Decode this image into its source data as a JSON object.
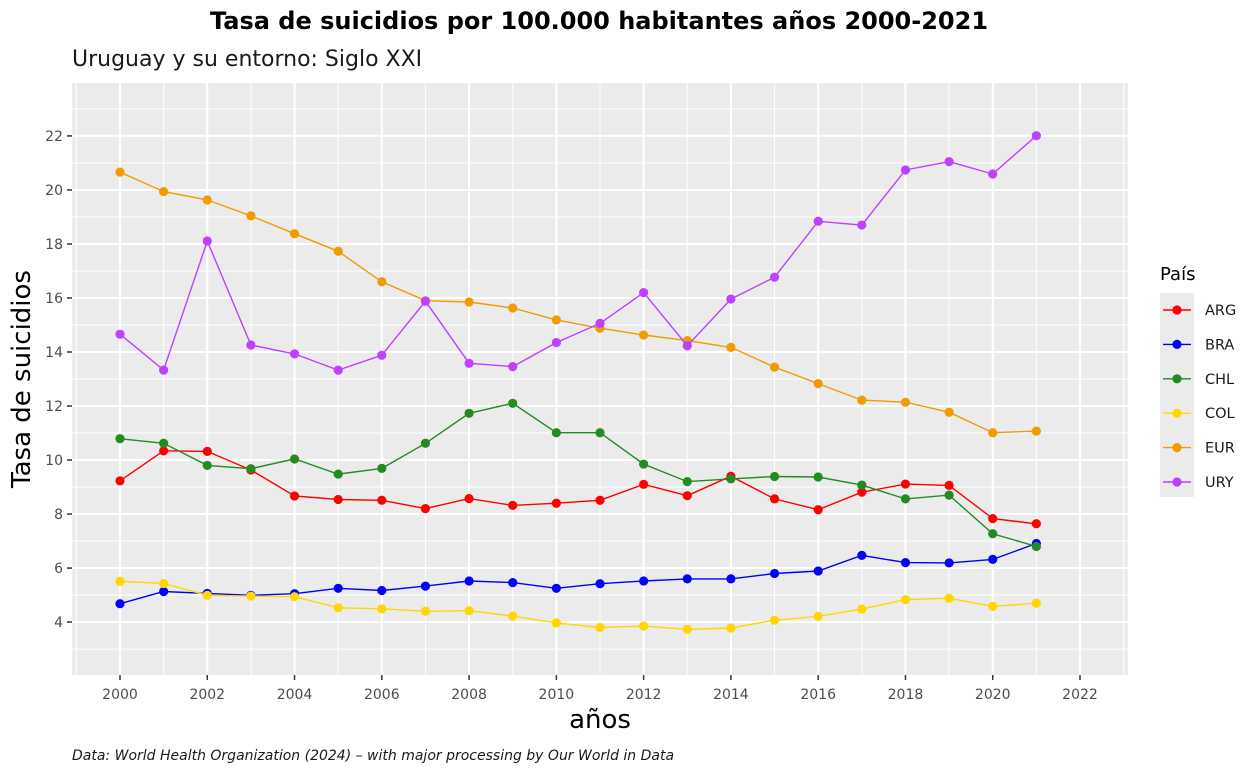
{
  "chart_data": {
    "type": "line",
    "title": "Tasa de suicidios por 100.000 habitantes años 2000-2021",
    "subtitle": "Uruguay y su entorno: Siglo XXI",
    "xlabel": "años",
    "ylabel": "Tasa de suicidios",
    "caption": "Data: World Health Organization (2024) – with major processing by Our World in Data",
    "xlim": [
      1998.9,
      2023.1
    ],
    "ylim": [
      2.04,
      23.96
    ],
    "x_ticks": [
      2000,
      2002,
      2004,
      2006,
      2008,
      2010,
      2012,
      2014,
      2016,
      2018,
      2020,
      2022
    ],
    "x_tick_labels": [
      "2000",
      "2002",
      "2004",
      "2006",
      "2008",
      "2010",
      "2012",
      "2014",
      "2016",
      "2018",
      "2020",
      "2022"
    ],
    "x_minor": [
      1999,
      2001,
      2003,
      2005,
      2007,
      2009,
      2011,
      2013,
      2015,
      2017,
      2019,
      2021,
      2023
    ],
    "y_ticks": [
      4,
      6,
      8,
      10,
      12,
      14,
      16,
      18,
      20,
      22
    ],
    "y_tick_labels": [
      "4",
      "6",
      "8",
      "10",
      "12",
      "14",
      "16",
      "18",
      "20",
      "22"
    ],
    "y_minor": [
      3,
      5,
      7,
      9,
      11,
      13,
      15,
      17,
      19,
      21,
      23
    ],
    "grid": true,
    "legend": {
      "title": "País",
      "position": "right"
    },
    "x": [
      2000,
      2001,
      2002,
      2003,
      2004,
      2005,
      2006,
      2007,
      2008,
      2009,
      2010,
      2011,
      2012,
      2013,
      2014,
      2015,
      2016,
      2017,
      2018,
      2019,
      2020,
      2021
    ],
    "series": [
      {
        "name": "ARG",
        "color": "#ff0000",
        "values": [
          9.23,
          10.34,
          10.32,
          9.63,
          8.67,
          8.54,
          8.51,
          8.2,
          8.57,
          8.32,
          8.4,
          8.51,
          9.1,
          8.68,
          9.4,
          8.56,
          8.16,
          8.81,
          9.11,
          9.06,
          7.83,
          7.64
        ]
      },
      {
        "name": "BRA",
        "color": "#0000ff",
        "values": [
          4.68,
          5.13,
          5.06,
          4.99,
          5.05,
          5.25,
          5.17,
          5.33,
          5.52,
          5.46,
          5.25,
          5.42,
          5.52,
          5.6,
          5.6,
          5.8,
          5.89,
          6.47,
          6.2,
          6.19,
          6.32,
          6.91
        ]
      },
      {
        "name": "CHL",
        "color": "#228b22",
        "values": [
          10.79,
          10.62,
          9.8,
          9.68,
          10.04,
          9.48,
          9.69,
          10.62,
          11.73,
          12.1,
          11.01,
          11.01,
          9.85,
          9.2,
          9.3,
          9.39,
          9.37,
          9.07,
          8.56,
          8.7,
          7.27,
          6.8
        ]
      },
      {
        "name": "COL",
        "color": "#ffd700",
        "values": [
          5.51,
          5.43,
          4.99,
          4.96,
          4.94,
          4.53,
          4.49,
          4.4,
          4.42,
          4.22,
          3.97,
          3.8,
          3.85,
          3.73,
          3.78,
          4.07,
          4.21,
          4.48,
          4.83,
          4.88,
          4.58,
          4.7
        ]
      },
      {
        "name": "EUR",
        "color": "#f09b00",
        "values": [
          20.66,
          19.94,
          19.63,
          19.04,
          18.38,
          17.73,
          16.6,
          15.9,
          15.85,
          15.63,
          15.19,
          14.88,
          14.63,
          14.42,
          14.17,
          13.44,
          12.83,
          12.22,
          12.14,
          11.77,
          11.01,
          11.07
        ]
      },
      {
        "name": "URY",
        "color": "#bf40ff",
        "values": [
          14.66,
          13.33,
          18.11,
          14.26,
          13.93,
          13.33,
          13.88,
          15.88,
          13.58,
          13.46,
          14.35,
          15.06,
          16.2,
          14.23,
          15.96,
          16.77,
          18.84,
          18.7,
          20.74,
          21.05,
          20.59,
          22.01
        ]
      }
    ]
  }
}
